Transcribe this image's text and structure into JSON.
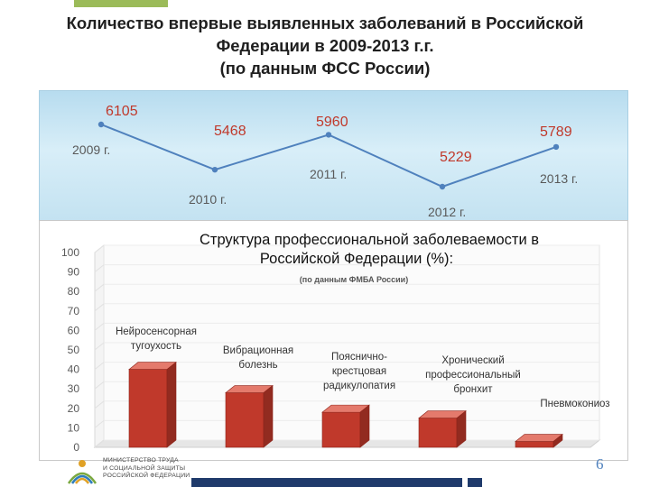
{
  "slide": {
    "title_lines": [
      "Количество впервые выявленных заболеваний в Российской",
      "Федерации в 2009-2013 г.г.",
      "(по данным ФСС России)"
    ],
    "page_number": "6",
    "footer": {
      "ministry_lines": [
        "МИНИСТЕРСТВО ТРУДА",
        "И СОЦИАЛЬНОЙ ЗАЩИТЫ",
        "РОССИЙСКОЙ ФЕДЕРАЦИИ"
      ]
    }
  },
  "chart_data": [
    {
      "type": "line",
      "title": "",
      "x": [
        "2009 г.",
        "2010 г.",
        "2011 г.",
        "2012 г.",
        "2013 г."
      ],
      "series": [
        {
          "values": [
            6105,
            5468,
            5960,
            5229,
            5789
          ],
          "color": "#4f81bd"
        }
      ],
      "value_label_color": "#c0392b",
      "year_label_color": "#595959",
      "grid": false,
      "legend": "none"
    },
    {
      "type": "bar",
      "title": "Структура профессиональной заболеваемости в Российской Федерации (%):",
      "title_lines": [
        "Структура профессиональной заболеваемости в",
        "Российской Федерации (%):"
      ],
      "subtitle": "(по данным ФМБА России)",
      "categories": [
        "Нейросенсорная тугоухость",
        "Вибрационная болезнь",
        "Пояснично-крестцовая радикулопатия",
        "Хронический профессиональный бронхит",
        "Пневмокониоз"
      ],
      "category_label_lines": [
        [
          "Нейросенсорная",
          "тугоухость"
        ],
        [
          "Вибрационная",
          "болезнь"
        ],
        [
          "Пояснично-",
          "крестцовая",
          "радикулопатия"
        ],
        [
          "Хронический",
          "профессиональный",
          "бронхит"
        ],
        [
          "Пневмокониоз"
        ]
      ],
      "values": [
        40,
        28,
        18,
        15,
        3
      ],
      "ylim": [
        0,
        100
      ],
      "yticks": [
        0,
        10,
        20,
        30,
        40,
        50,
        60,
        70,
        80,
        90,
        100
      ],
      "bar_color": "#c0392b",
      "grid": false,
      "legend": "none"
    }
  ]
}
